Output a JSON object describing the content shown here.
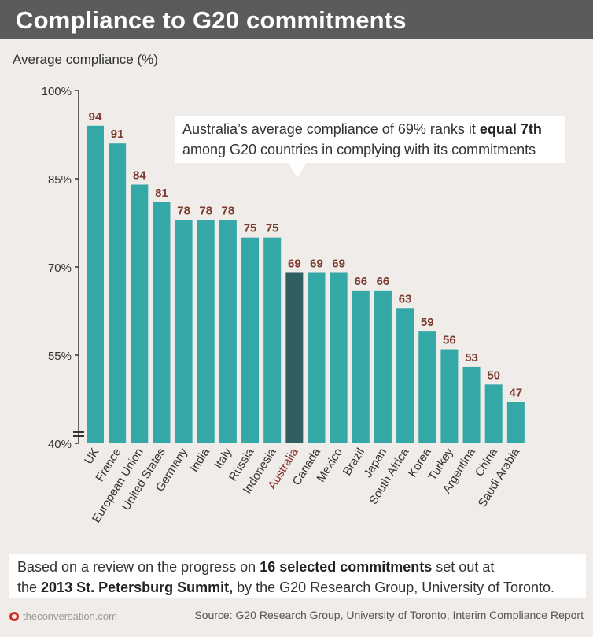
{
  "title": "Compliance to G20 commitments",
  "ylabel": "Average compliance (%)",
  "callout": {
    "pre": "Australia’s average compliance of 69% ranks it ",
    "bold": "equal 7th",
    "post": "among G20 countries in complying with its commitments"
  },
  "note": {
    "line1_pre": "Based on a review on the progress on ",
    "line1_bold": "16 selected commitments",
    "line1_post": " set out at",
    "line2_pre": "the ",
    "line2_bold": "2013 St. Petersburg Summit,",
    "line2_post": " by the G20 Research Group, University of Toronto."
  },
  "footer": {
    "logo": "theconversation.com",
    "source": "Source: G20 Research Group, University of Toronto, Interim Compliance Report"
  },
  "colors": {
    "bar": "#34a8a7",
    "highlight_bar": "#2f5f5e",
    "value_label": "#7a3a2e",
    "highlight_label": "#8b3226"
  },
  "chart_data": {
    "type": "bar",
    "categories": [
      "UK",
      "France",
      "European Union",
      "United States",
      "Germany",
      "India",
      "Italy",
      "Russia",
      "Indonesia",
      "Australia",
      "Canada",
      "Mexico",
      "Brazil",
      "Japan",
      "South Africa",
      "Korea",
      "Turkey",
      "Argentina",
      "China",
      "Saudi Arabia"
    ],
    "values": [
      94,
      91,
      84,
      81,
      78,
      78,
      78,
      75,
      75,
      69,
      69,
      69,
      66,
      66,
      63,
      59,
      56,
      53,
      50,
      47
    ],
    "highlight": "Australia",
    "ylabel": "Average compliance (%)",
    "ylim": [
      40,
      100
    ],
    "yticks": [
      "40%",
      "55%",
      "70%",
      "85%",
      "100%"
    ],
    "ytick_values": [
      40,
      55,
      70,
      85,
      100
    ],
    "axis_break": true,
    "grid": false
  }
}
